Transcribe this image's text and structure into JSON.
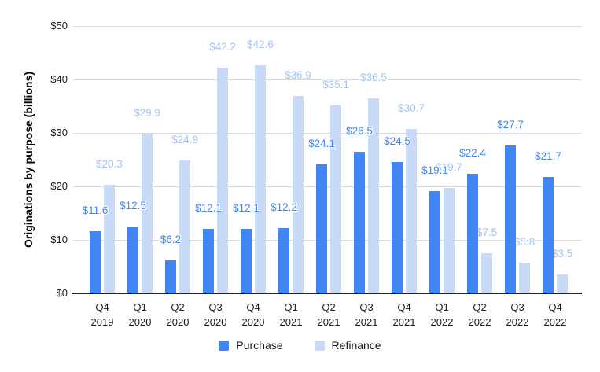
{
  "chart_data": {
    "type": "bar",
    "title": "",
    "ylabel": "Originations by purpose (billions)",
    "xlabel": "",
    "ylim": [
      0,
      50
    ],
    "grid": true,
    "legend_position": "bottom",
    "value_label_prefix": "$",
    "y_ticks": [
      {
        "value": 0,
        "label": "$0"
      },
      {
        "value": 10,
        "label": "$10"
      },
      {
        "value": 20,
        "label": "$20"
      },
      {
        "value": 30,
        "label": "$30"
      },
      {
        "value": 40,
        "label": "$40"
      },
      {
        "value": 50,
        "label": "$50"
      }
    ],
    "categories": [
      [
        "Q4",
        "2019"
      ],
      [
        "Q1",
        "2020"
      ],
      [
        "Q2",
        "2020"
      ],
      [
        "Q3",
        "2020"
      ],
      [
        "Q4",
        "2020"
      ],
      [
        "Q1",
        "2021"
      ],
      [
        "Q2",
        "2021"
      ],
      [
        "Q3",
        "2021"
      ],
      [
        "Q4",
        "2021"
      ],
      [
        "Q1",
        "2022"
      ],
      [
        "Q2",
        "2022"
      ],
      [
        "Q3",
        "2022"
      ],
      [
        "Q4",
        "2022"
      ]
    ],
    "series": [
      {
        "name": "Purchase",
        "bar_color": "#4285f4",
        "label_color": "#4285f4",
        "values": [
          11.6,
          12.5,
          6.2,
          12.1,
          12.1,
          12.2,
          24.1,
          26.5,
          24.5,
          19.1,
          22.4,
          27.7,
          21.7
        ]
      },
      {
        "name": "Refinance",
        "bar_color": "#c9daf8",
        "label_color": "#a4c2f4",
        "values": [
          20.3,
          29.9,
          24.9,
          42.2,
          42.6,
          36.9,
          35.1,
          36.5,
          30.7,
          19.7,
          7.5,
          5.8,
          3.5
        ]
      }
    ],
    "colors": {
      "gridline": "#d9d9d9",
      "axis_line": "#212121",
      "text": "#1a1a1a"
    }
  }
}
